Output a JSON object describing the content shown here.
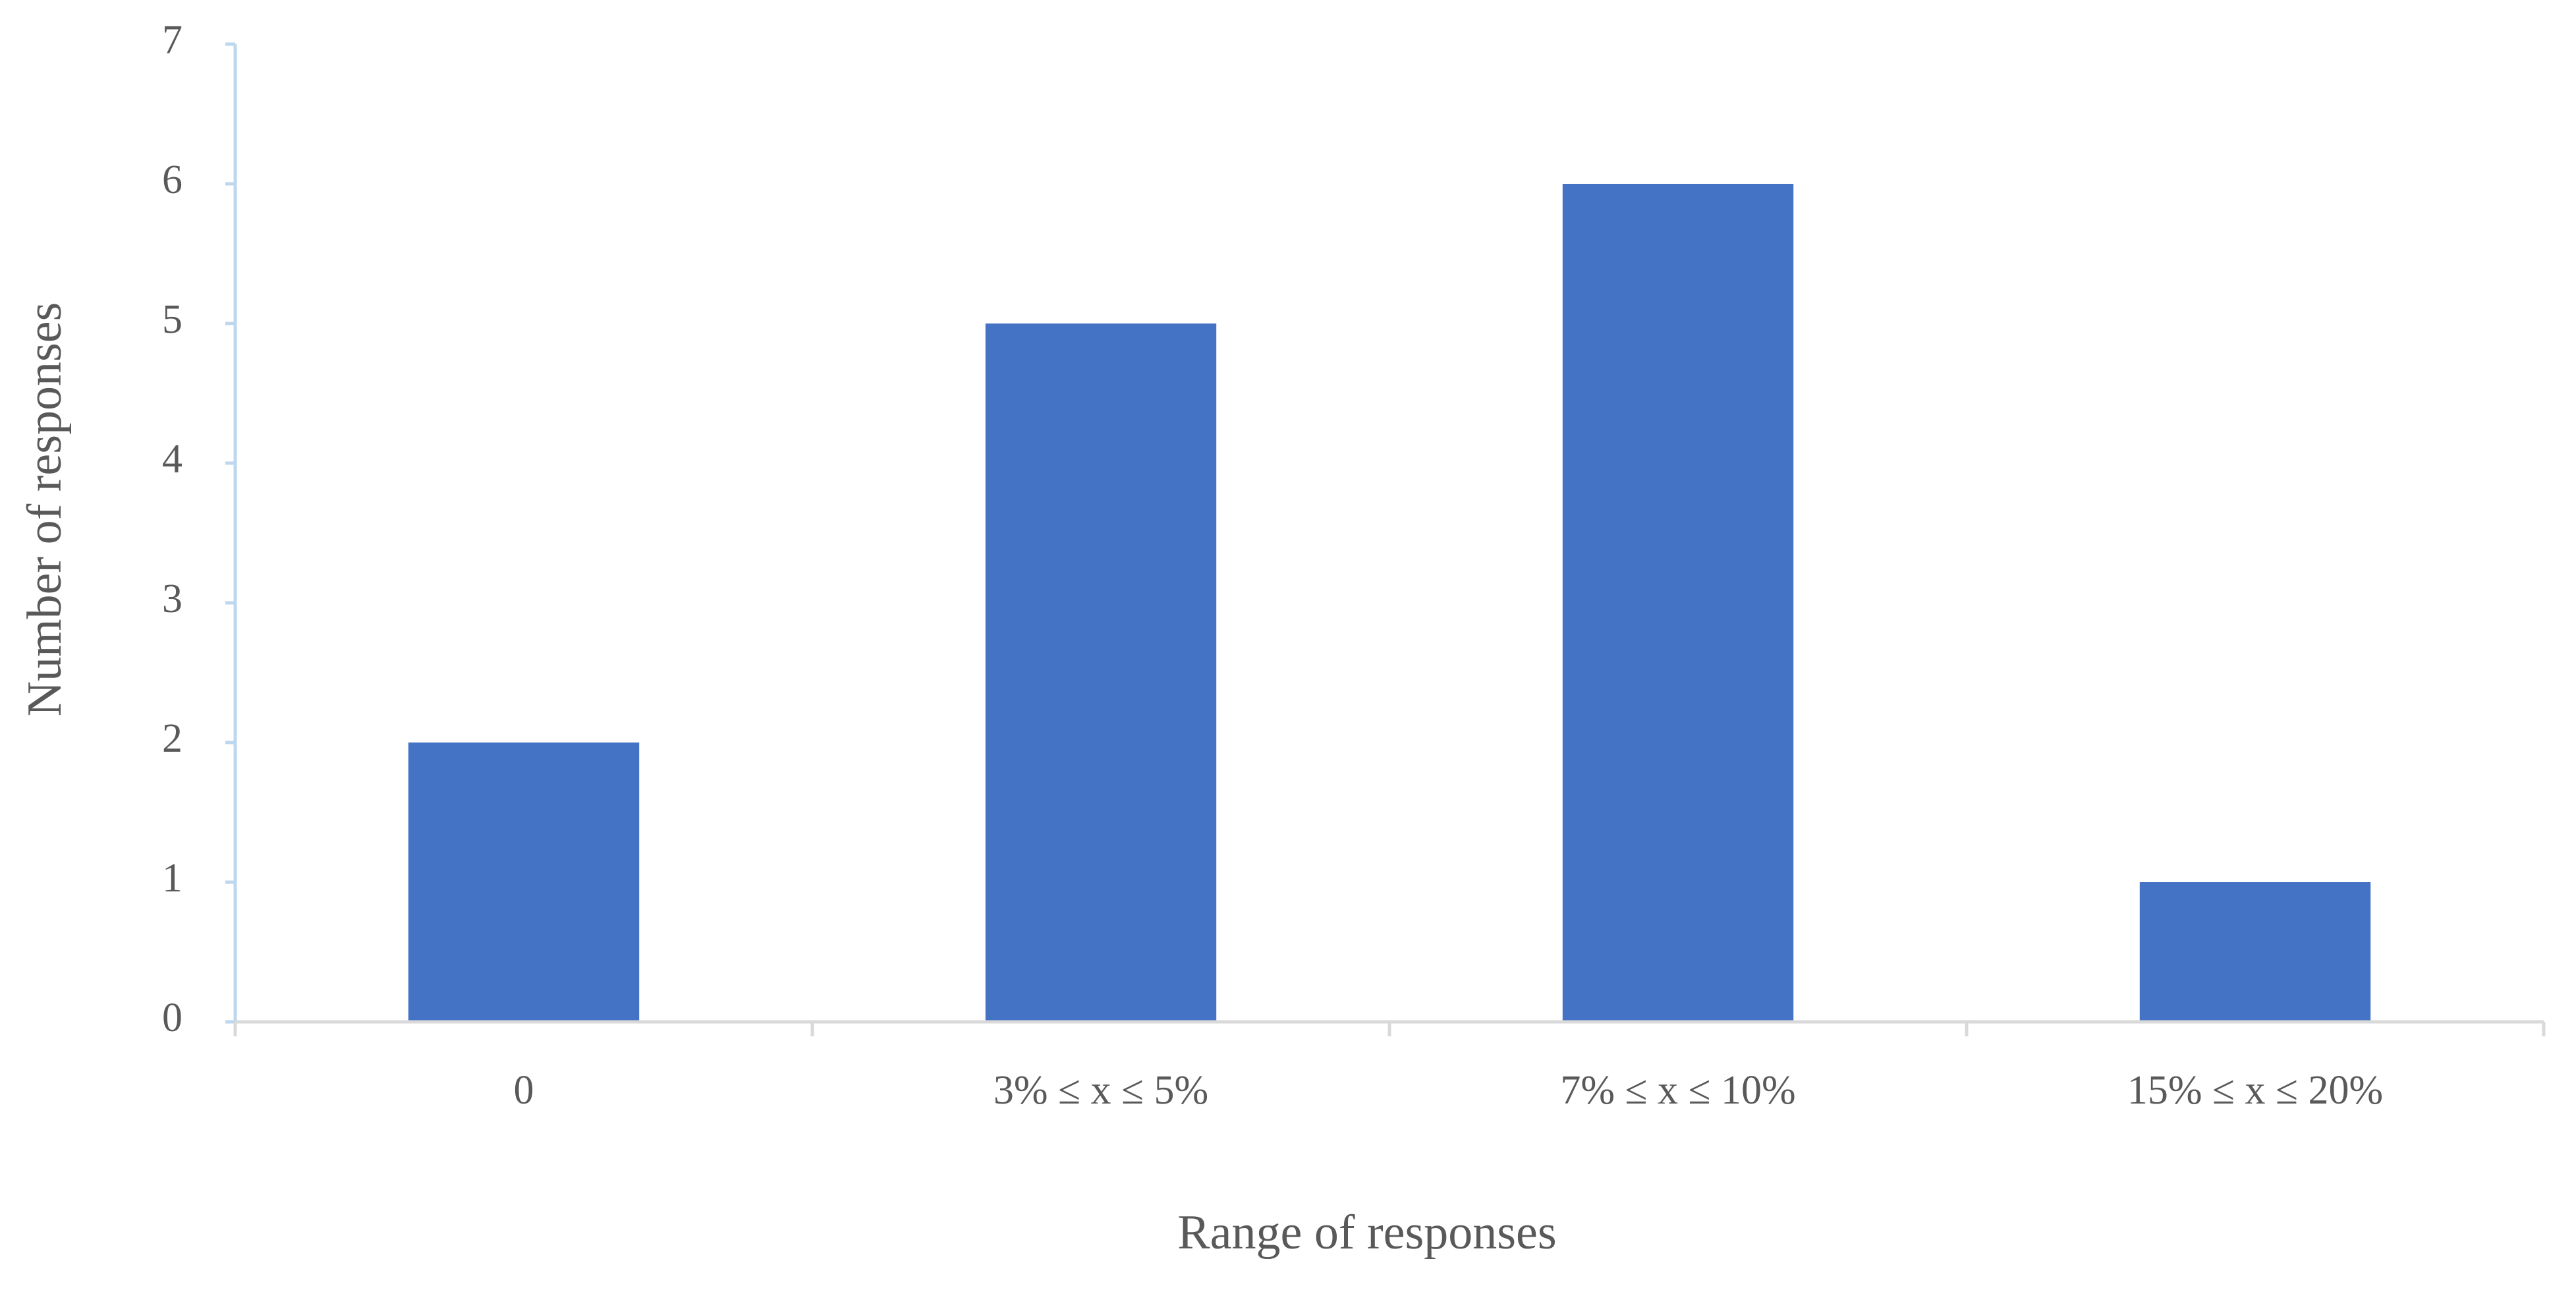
{
  "chart_data": {
    "type": "bar",
    "x_label": "Range of responses",
    "y_label": "Number of responses",
    "categories": [
      "0",
      "3% ≤ x ≤ 5%",
      "7% ≤ x ≤ 10%",
      "15% ≤ x ≤ 20%"
    ],
    "values": [
      2,
      5,
      6,
      1
    ],
    "color": "#4472c4",
    "ylim": [
      0,
      7
    ],
    "yticks": [
      0,
      1,
      2,
      3,
      4,
      5,
      6,
      7
    ],
    "grid": false
  }
}
